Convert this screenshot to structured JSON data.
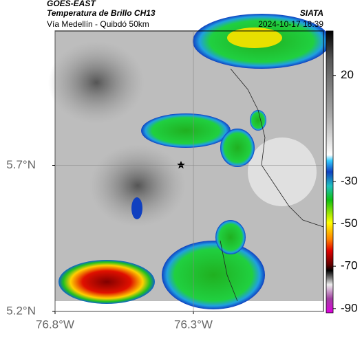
{
  "header": {
    "title": "GOES-EAST",
    "subtitle": "Temperatura de Brillo CH13",
    "region": "Vía Medellín - Quibdó 50km",
    "source": "SIATA",
    "timestamp": "2024-10-17 18:39"
  },
  "map": {
    "xlim": [
      -76.8,
      -75.83
    ],
    "ylim": [
      5.2,
      6.16
    ],
    "xticks": [
      {
        "value": -76.8,
        "label": "76.8°W"
      },
      {
        "value": -76.3,
        "label": "76.3°W"
      }
    ],
    "yticks": [
      {
        "value": 5.7,
        "label": "5.7°N"
      },
      {
        "value": 5.2,
        "label": "5.2°N"
      }
    ]
  },
  "colorbar": {
    "lim": [
      -92,
      41
    ],
    "ticks": [
      20,
      -30,
      -50,
      -70,
      -90
    ]
  }
}
